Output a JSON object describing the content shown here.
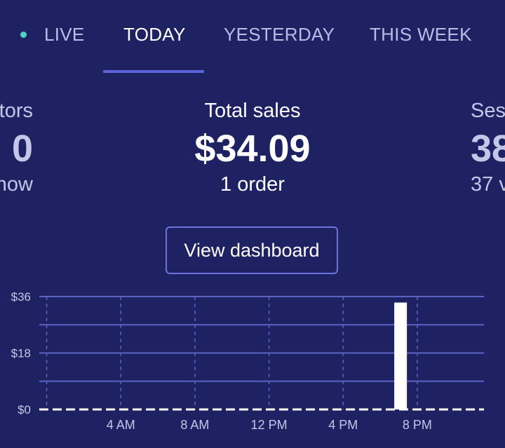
{
  "tabs": [
    {
      "label": "LIVE",
      "indicator_color": "#4fd1c5"
    },
    {
      "label": "TODAY",
      "active": true
    },
    {
      "label": "YESTERDAY"
    },
    {
      "label": "THIS WEEK"
    }
  ],
  "stats": {
    "left": {
      "label": "tors",
      "value": "0",
      "sub": "now"
    },
    "center": {
      "label": "Total sales",
      "value": "$34.09",
      "sub": "1 order"
    },
    "right": {
      "label": "Ses",
      "value": "38",
      "sub": "37 v"
    }
  },
  "dashboard_button": {
    "label": "View dashboard"
  },
  "colors": {
    "background": "#1e2263",
    "accent": "#5b63d6",
    "bar": "#ffffff",
    "gridline": "#5a62c4"
  },
  "chart_data": {
    "type": "bar",
    "y_tick_labels": [
      "$36",
      "$18",
      "$0"
    ],
    "x_tick_labels": [
      "4 AM",
      "8 AM",
      "12 PM",
      "4 PM",
      "8 PM"
    ],
    "ylim": [
      0,
      36
    ],
    "x": [
      0,
      1,
      2,
      3,
      4,
      5,
      6,
      7,
      8,
      9,
      10,
      11,
      12,
      13,
      14,
      15,
      16,
      17,
      18,
      19,
      20,
      21,
      22,
      23
    ],
    "values": [
      0,
      0,
      0,
      0,
      0,
      0,
      0,
      0,
      0,
      0,
      0,
      0,
      0,
      0,
      0,
      0,
      0,
      0,
      0,
      34.09,
      0,
      0,
      0,
      0
    ]
  }
}
